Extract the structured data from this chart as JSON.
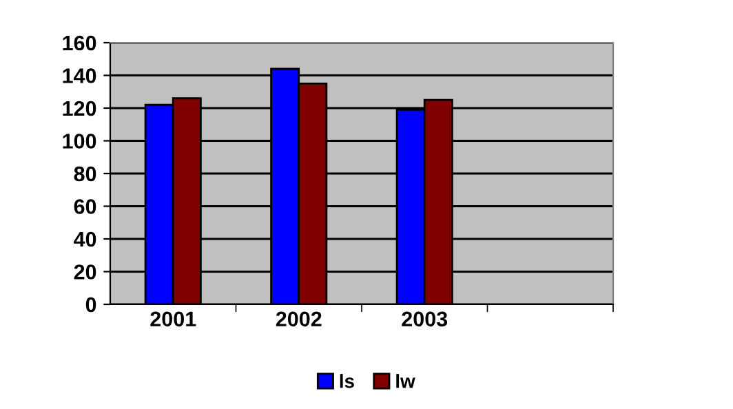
{
  "chart_data": {
    "type": "bar",
    "categories": [
      "2001",
      "2002",
      "2003",
      null
    ],
    "series": [
      {
        "name": "ls",
        "color": "#0000ff",
        "values": [
          122,
          144,
          119,
          null
        ]
      },
      {
        "name": "lw",
        "color": "#800000",
        "values": [
          126,
          135,
          125,
          null
        ]
      }
    ],
    "ylim": [
      0,
      160
    ],
    "yticks": [
      0,
      20,
      40,
      60,
      80,
      100,
      120,
      140,
      160
    ],
    "grid": "y",
    "legend": "bottom"
  }
}
